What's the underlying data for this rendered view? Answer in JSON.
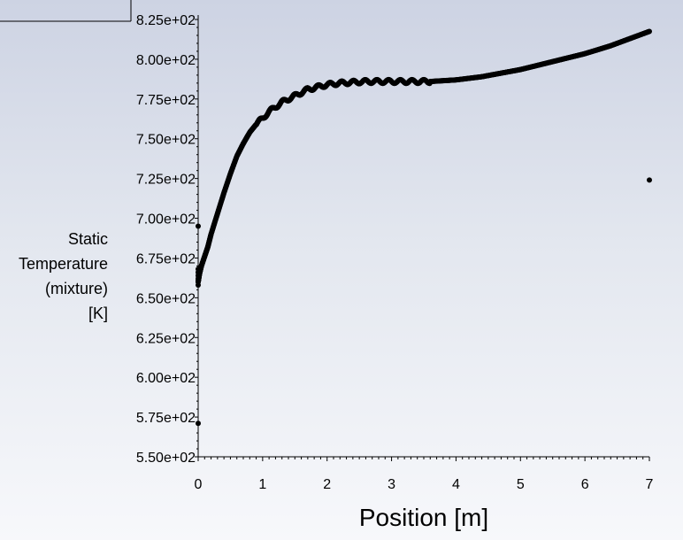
{
  "chart_data": {
    "type": "scatter",
    "title": "",
    "xlabel": "Position [m]",
    "ylabel_lines": [
      "Static",
      "Temperature",
      "(mixture)",
      "[K]"
    ],
    "xlim": [
      0,
      7
    ],
    "ylim": [
      550,
      825
    ],
    "x_ticks": [
      0,
      1,
      2,
      3,
      4,
      5,
      6,
      7
    ],
    "x_tick_labels": [
      "0",
      "1",
      "2",
      "3",
      "4",
      "5",
      "6",
      "7"
    ],
    "y_ticks": [
      550,
      575,
      600,
      625,
      650,
      675,
      700,
      725,
      750,
      775,
      800,
      825
    ],
    "y_tick_labels": [
      "5.50e+02",
      "5.75e+02",
      "6.00e+02",
      "6.25e+02",
      "6.50e+02",
      "6.75e+02",
      "7.00e+02",
      "7.25e+02",
      "7.50e+02",
      "7.75e+02",
      "8.00e+02",
      "8.25e+02"
    ],
    "grid": false,
    "legend": "none",
    "series_color": "#000000",
    "series": [
      {
        "x": [
          0.0,
          0.02,
          0.05,
          0.1,
          0.15,
          0.2,
          0.3,
          0.4,
          0.5,
          0.6,
          0.7,
          0.8,
          0.9,
          1.0,
          1.1,
          1.2,
          1.3,
          1.4,
          1.5,
          1.6,
          1.7,
          1.8,
          1.9,
          2.0,
          2.2,
          2.4,
          2.6,
          2.8,
          3.0,
          3.2,
          3.4,
          3.6,
          3.8,
          4.0,
          4.2,
          4.4,
          4.6,
          4.8,
          5.0,
          5.2,
          5.4,
          5.6,
          5.8,
          6.0,
          6.2,
          6.4,
          6.6,
          6.8,
          7.0
        ],
        "y": [
          660,
          665,
          670,
          676,
          682,
          690,
          703,
          716,
          728,
          739,
          747,
          754,
          759,
          763,
          767,
          770,
          773,
          775,
          777,
          779,
          781,
          782,
          783,
          784,
          785,
          785.5,
          786,
          786,
          786,
          786,
          786,
          786,
          786.5,
          787,
          788,
          789,
          790.5,
          792,
          793.5,
          795.5,
          797.5,
          799.5,
          801.5,
          803.5,
          806,
          808.5,
          811.5,
          814.5,
          817.5
        ]
      }
    ],
    "outliers": [
      {
        "x": 0.0,
        "y": 695
      },
      {
        "x": 0.0,
        "y": 571
      },
      {
        "x": 7.0,
        "y": 724
      }
    ]
  }
}
